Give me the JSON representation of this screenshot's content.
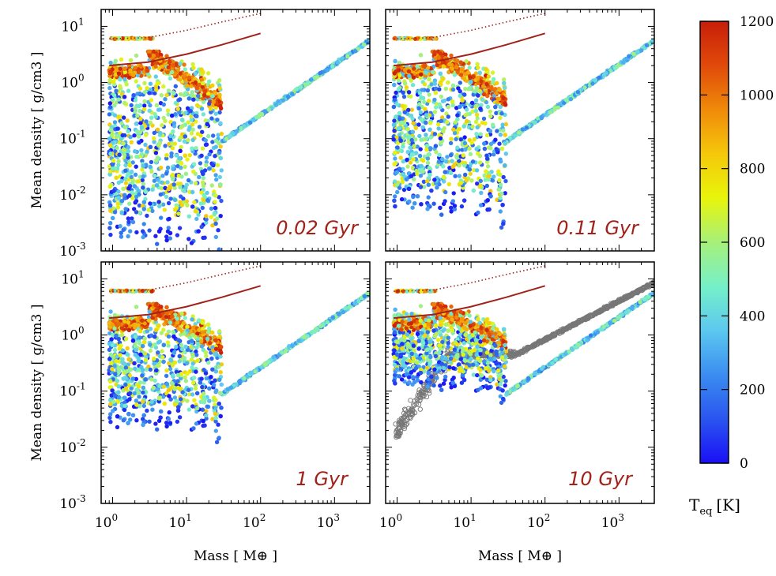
{
  "chart_data": {
    "type": "scatter",
    "title": "",
    "xlabel": "Mass [ M⊕ ]",
    "ylabel": "Mean density [ g/cm3 ]",
    "x_scale": "log",
    "y_scale": "log",
    "xlim": [
      0.7,
      3000
    ],
    "ylim": [
      0.001,
      20
    ],
    "x_ticks": [
      {
        "base": "10",
        "exp": "0"
      },
      {
        "base": "10",
        "exp": "1"
      },
      {
        "base": "10",
        "exp": "2"
      },
      {
        "base": "10",
        "exp": "3"
      }
    ],
    "y_ticks": [
      {
        "base": "10",
        "exp": "1"
      },
      {
        "base": "10",
        "exp": "0"
      },
      {
        "base": "10",
        "exp": "-1"
      },
      {
        "base": "10",
        "exp": "-2"
      },
      {
        "base": "10",
        "exp": "-3"
      }
    ],
    "panels": [
      {
        "label": "0.02 Gyr",
        "age_gyr": 0.02,
        "show_open_markers": false
      },
      {
        "label": "0.11 Gyr",
        "age_gyr": 0.11,
        "show_open_markers": false
      },
      {
        "label": "1 Gyr",
        "age_gyr": 1,
        "show_open_markers": false
      },
      {
        "label": "10 Gyr",
        "age_gyr": 10,
        "show_open_markers": true
      }
    ],
    "reference_lines": [
      {
        "name": "dotted-upper",
        "style": "dotted",
        "color": "#a0221a",
        "points": [
          [
            0.9,
            6.0
          ],
          [
            3,
            6.3
          ],
          [
            10,
            8.5
          ],
          [
            30,
            12.0
          ],
          [
            100,
            17.0
          ]
        ]
      },
      {
        "name": "solid-lower",
        "style": "solid",
        "color": "#a0221a",
        "points": [
          [
            0.9,
            2.0
          ],
          [
            3,
            2.3
          ],
          [
            10,
            3.2
          ],
          [
            30,
            4.7
          ],
          [
            100,
            7.5
          ]
        ]
      }
    ],
    "series": [
      {
        "name": "gas giant branch",
        "points": [
          [
            30,
            0.09
          ],
          [
            100,
            0.3
          ],
          [
            300,
            0.9
          ],
          [
            1000,
            2.5
          ],
          [
            3000,
            5.5
          ]
        ],
        "teq_range": [
          200,
          600
        ]
      },
      {
        "name": "low-mass planets",
        "mass_range": [
          0.9,
          30
        ],
        "density_range": [
          0.003,
          5
        ],
        "teq_range": [
          0,
          1200
        ]
      },
      {
        "name": "10 Gyr comparison (open gray)",
        "points": [
          [
            1,
            0.02
          ],
          [
            2,
            0.1
          ],
          [
            5,
            0.35
          ],
          [
            10,
            0.45
          ],
          [
            50,
            0.5
          ],
          [
            300,
            1.2
          ],
          [
            3000,
            9
          ]
        ]
      }
    ],
    "colorbar": {
      "label": "T",
      "label_sub": "eq",
      "label_unit": "[K]",
      "min": 0,
      "max": 1200,
      "ticks": [
        "0",
        "200",
        "400",
        "600",
        "800",
        "1000",
        "1200"
      ],
      "colors": [
        "#1a10f5",
        "#2a55f0",
        "#3b8df0",
        "#5cc8f0",
        "#76f0c8",
        "#a6f07a",
        "#e8f50a",
        "#f5c80a",
        "#f08a0a",
        "#e04a0a",
        "#c81e0a"
      ]
    }
  }
}
